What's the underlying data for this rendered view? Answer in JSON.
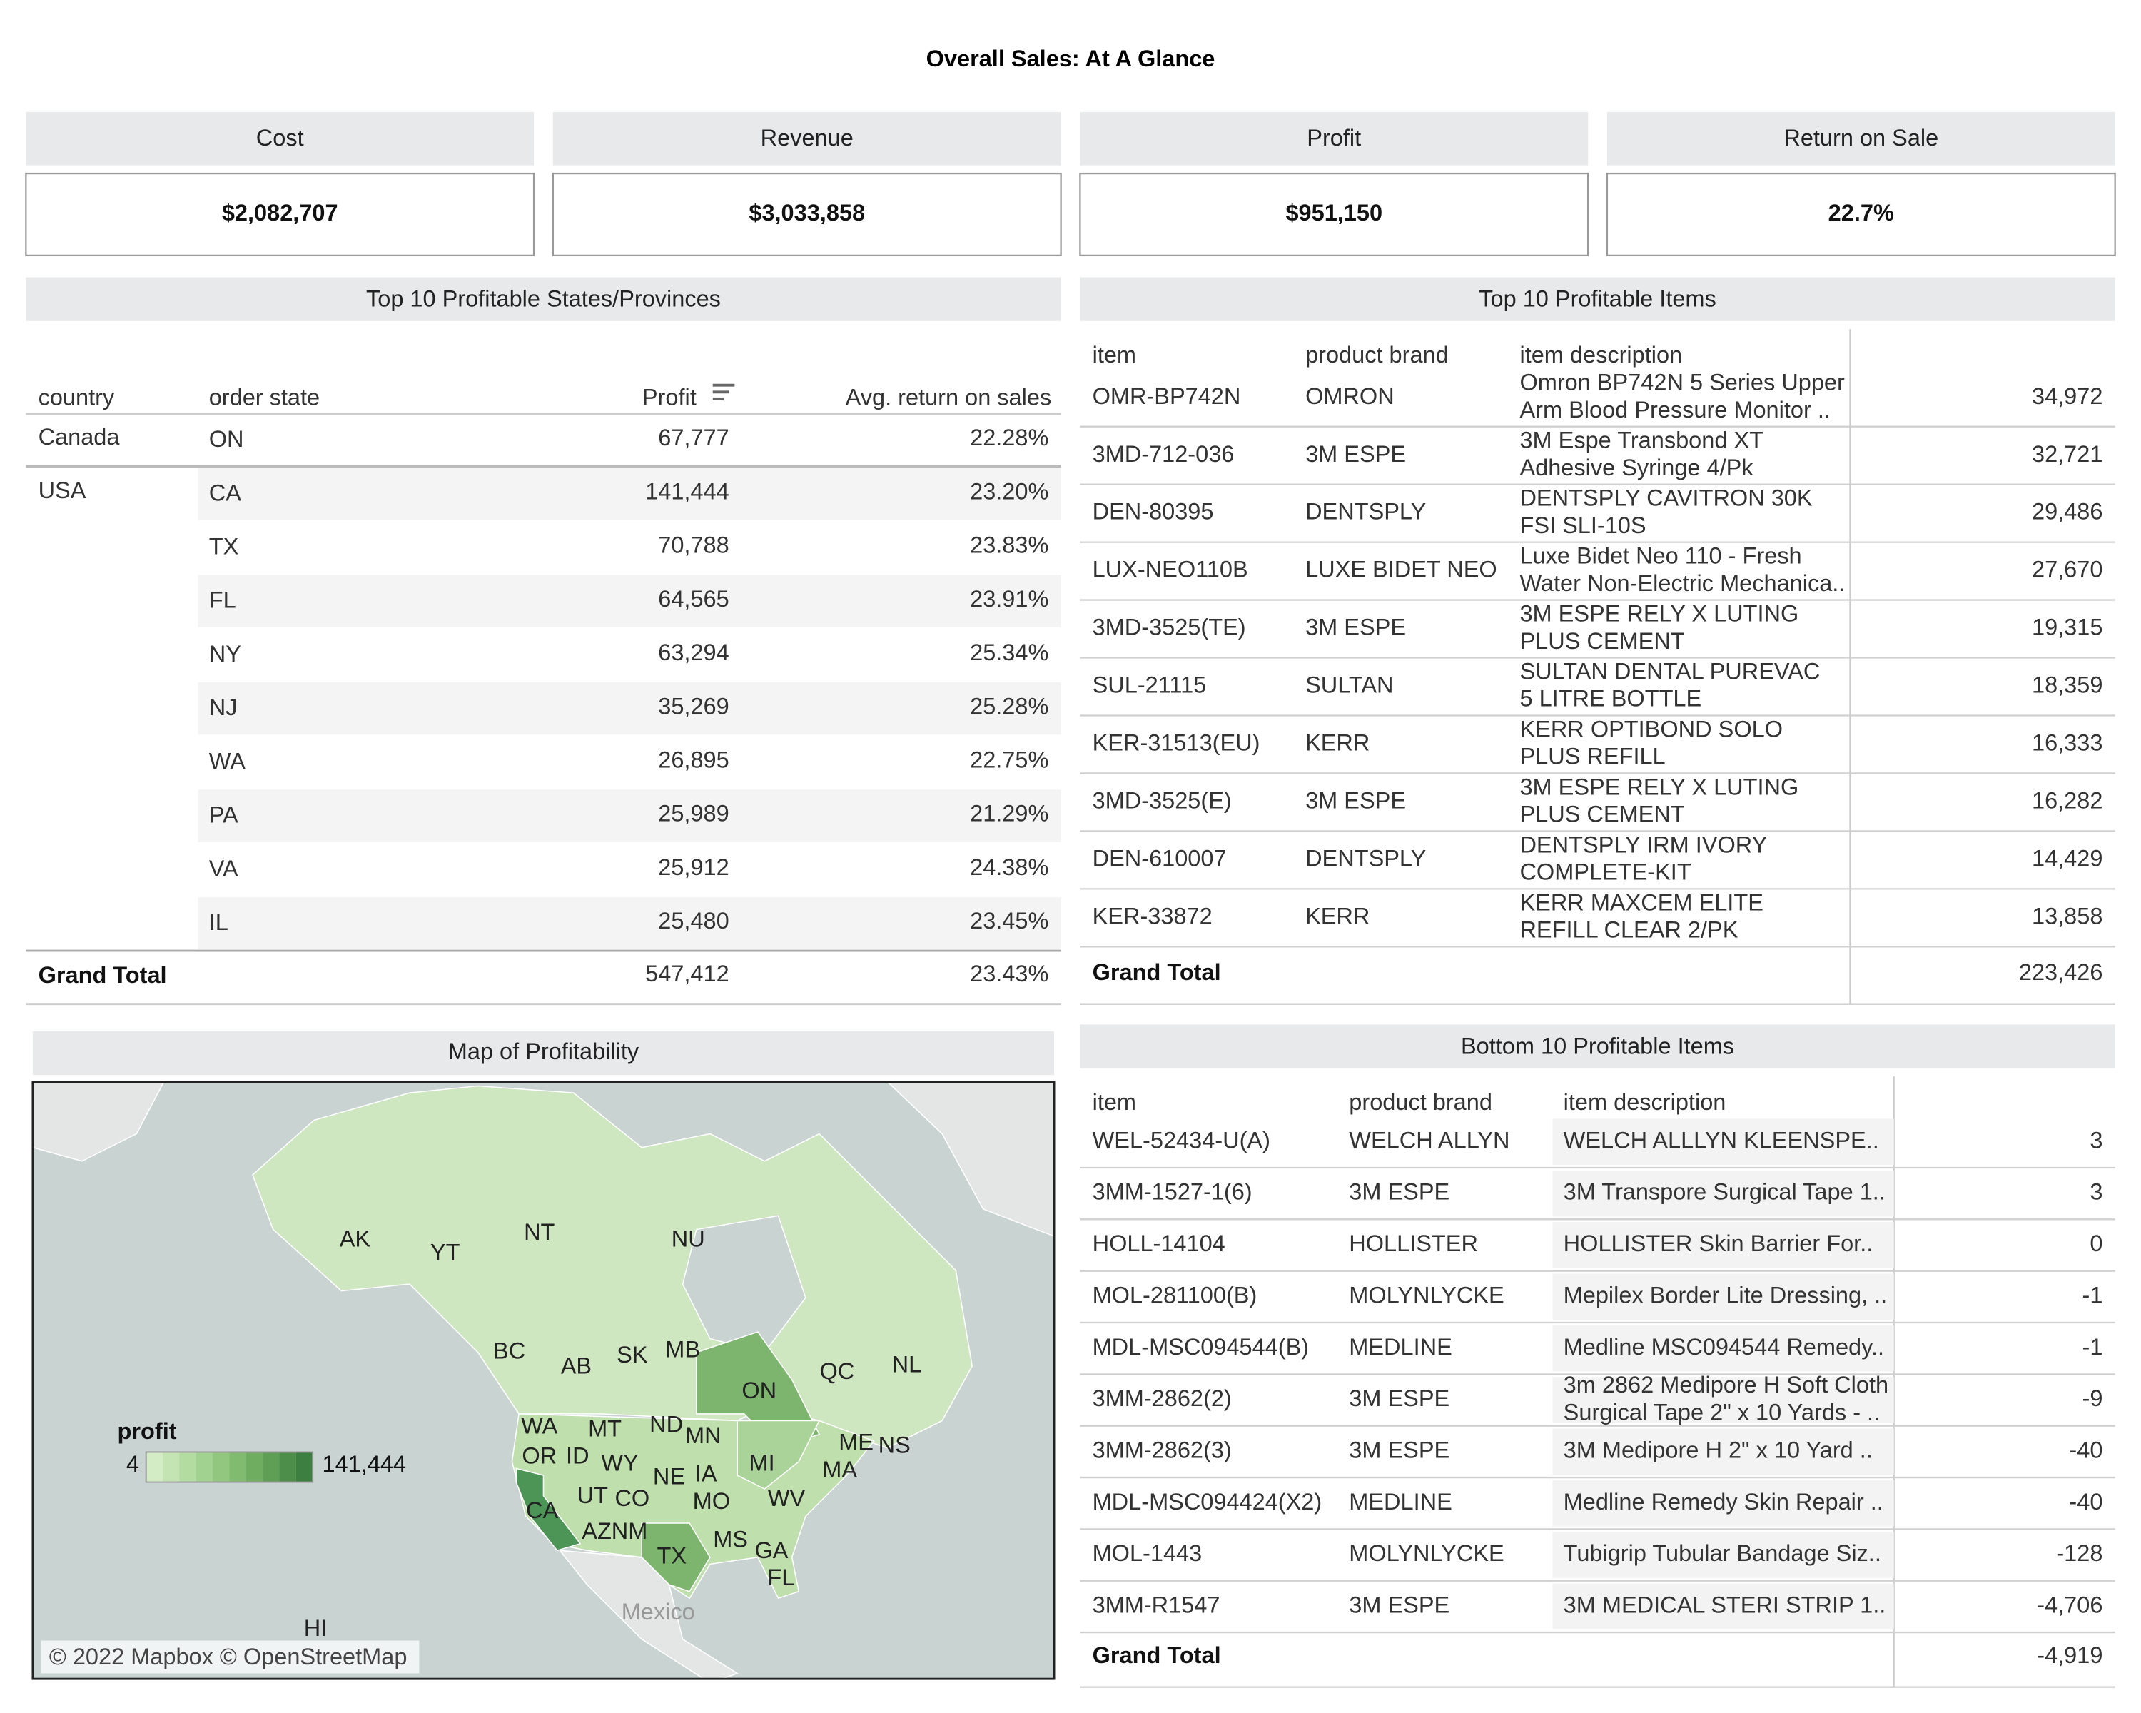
{
  "title": "Overall Sales: At A Glance",
  "kpis": [
    {
      "label": "Cost",
      "value": "$2,082,707"
    },
    {
      "label": "Revenue",
      "value": "$3,033,858"
    },
    {
      "label": "Profit",
      "value": "$951,150"
    },
    {
      "label": "Return on Sale",
      "value": "22.7%"
    }
  ],
  "states_table": {
    "title": "Top 10 Profitable States/Provinces",
    "columns": [
      "country",
      "order state",
      "Profit",
      "Avg. return on sales"
    ],
    "groups": [
      {
        "country": "Canada",
        "rows": [
          [
            "ON",
            "67,777",
            "22.28%"
          ]
        ]
      },
      {
        "country": "USA",
        "rows": [
          [
            "CA",
            "141,444",
            "23.20%"
          ],
          [
            "TX",
            "70,788",
            "23.83%"
          ],
          [
            "FL",
            "64,565",
            "23.91%"
          ],
          [
            "NY",
            "63,294",
            "25.34%"
          ],
          [
            "NJ",
            "35,269",
            "25.28%"
          ],
          [
            "WA",
            "26,895",
            "22.75%"
          ],
          [
            "PA",
            "25,989",
            "21.29%"
          ],
          [
            "VA",
            "25,912",
            "24.38%"
          ],
          [
            "IL",
            "25,480",
            "23.45%"
          ]
        ]
      }
    ],
    "total": {
      "label": "Grand Total",
      "profit": "547,412",
      "return": "23.43%"
    }
  },
  "top_items": {
    "title": "Top 10 Profitable Items",
    "columns": [
      "item",
      "product brand",
      "item description"
    ],
    "rows": [
      {
        "item": "OMR-BP742N",
        "brand": "OMRON",
        "description": [
          "Omron BP742N 5 Series Upper",
          "Arm Blood Pressure Monitor .."
        ],
        "value": "34,972"
      },
      {
        "item": "3MD-712-036",
        "brand": "3M ESPE",
        "description": [
          "3M Espe Transbond XT",
          "Adhesive Syringe 4/Pk"
        ],
        "value": "32,721"
      },
      {
        "item": "DEN-80395",
        "brand": "DENTSPLY",
        "description": [
          "DENTSPLY CAVITRON 30K",
          "FSI SLI-10S"
        ],
        "value": "29,486"
      },
      {
        "item": "LUX-NEO110B",
        "brand": "LUXE BIDET NEO",
        "description": [
          "Luxe Bidet Neo 110 - Fresh",
          "Water Non-Electric Mechanica.."
        ],
        "value": "27,670"
      },
      {
        "item": "3MD-3525(TE)",
        "brand": "3M ESPE",
        "description": [
          "3M ESPE RELY X LUTING",
          "PLUS CEMENT"
        ],
        "value": "19,315"
      },
      {
        "item": "SUL-21115",
        "brand": "SULTAN",
        "description": [
          "SULTAN DENTAL PUREVAC",
          "5 LITRE BOTTLE"
        ],
        "value": "18,359"
      },
      {
        "item": "KER-31513(EU)",
        "brand": "KERR",
        "description": [
          "KERR OPTIBOND SOLO",
          "PLUS REFILL"
        ],
        "value": "16,333"
      },
      {
        "item": "3MD-3525(E)",
        "brand": "3M ESPE",
        "description": [
          "3M ESPE RELY X LUTING",
          "PLUS CEMENT"
        ],
        "value": "16,282"
      },
      {
        "item": "DEN-610007",
        "brand": "DENTSPLY",
        "description": [
          "DENTSPLY IRM IVORY",
          "COMPLETE-KIT"
        ],
        "value": "14,429"
      },
      {
        "item": "KER-33872",
        "brand": "KERR",
        "description": [
          "KERR MAXCEM ELITE",
          "REFILL CLEAR 2/PK"
        ],
        "value": "13,858"
      }
    ],
    "total": {
      "label": "Grand Total",
      "value": "223,426"
    }
  },
  "bottom_items": {
    "title": "Bottom 10 Profitable Items",
    "columns": [
      "item",
      "product brand",
      "item description"
    ],
    "rows": [
      {
        "item": "WEL-52434-U(A)",
        "brand": "WELCH ALLYN",
        "description": [
          "WELCH ALLLYN KLEENSPE.."
        ],
        "value": "3"
      },
      {
        "item": "3MM-1527-1(6)",
        "brand": "3M ESPE",
        "description": [
          "3M Transpore Surgical Tape 1.."
        ],
        "value": "3"
      },
      {
        "item": "HOLL-14104",
        "brand": "HOLLISTER",
        "description": [
          "HOLLISTER Skin Barrier For.."
        ],
        "value": "0"
      },
      {
        "item": "MOL-281100(B)",
        "brand": "MOLYNLYCKE",
        "description": [
          "Mepilex Border Lite Dressing, .."
        ],
        "value": "-1"
      },
      {
        "item": "MDL-MSC094544(B)",
        "brand": "MEDLINE",
        "description": [
          "Medline MSC094544 Remedy.."
        ],
        "value": "-1"
      },
      {
        "item": "3MM-2862(2)",
        "brand": "3M ESPE",
        "description": [
          "3m 2862 Medipore H Soft Cloth",
          "Surgical Tape 2\" x 10 Yards - .."
        ],
        "value": "-9"
      },
      {
        "item": "3MM-2862(3)",
        "brand": "3M ESPE",
        "description": [
          "3M Medipore H 2\" x 10 Yard .."
        ],
        "value": "-40"
      },
      {
        "item": "MDL-MSC094424(X2)",
        "brand": "MEDLINE",
        "description": [
          "Medline Remedy Skin Repair .."
        ],
        "value": "-40"
      },
      {
        "item": "MOL-1443",
        "brand": "MOLYNLYCKE",
        "description": [
          "Tubigrip Tubular Bandage Siz.."
        ],
        "value": "-128"
      },
      {
        "item": "3MM-R1547",
        "brand": "3M ESPE",
        "description": [
          "3M MEDICAL STERI STRIP 1.."
        ],
        "value": "-4,706"
      }
    ],
    "total": {
      "label": "Grand Total",
      "value": "-4,919"
    }
  },
  "map": {
    "title": "Map of Profitability",
    "legend_title": "profit",
    "legend_min": "4",
    "legend_max": "141,444",
    "labels": [
      "AK",
      "YT",
      "NT",
      "NU",
      "BC",
      "AB",
      "SK",
      "MB",
      "ON",
      "QC",
      "NL",
      "WA",
      "OR",
      "ID",
      "MT",
      "ND",
      "MN",
      "WY",
      "NE",
      "IA",
      "MI",
      "ME",
      "NS",
      "MA",
      "CA",
      "UT",
      "CO",
      "MO",
      "WV",
      "AZ",
      "NM",
      "TX",
      "MS",
      "GA",
      "FL",
      "HI",
      "Mexico"
    ],
    "attribution": "© 2022 Mapbox © OpenStreetMap"
  }
}
